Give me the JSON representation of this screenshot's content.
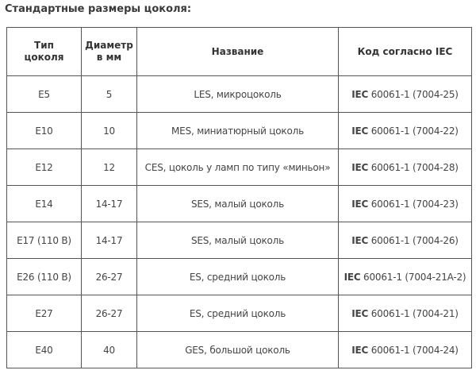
{
  "heading": "Стандартные размеры цоколя:",
  "table": {
    "headers": [
      {
        "line1": "Тип",
        "line2": "цоколя"
      },
      {
        "line1": "Диаметр",
        "line2": "в мм"
      },
      {
        "line1": "Название",
        "line2": ""
      },
      {
        "line1": "Код согласно IEC",
        "line2": ""
      }
    ],
    "rows": [
      {
        "type": "E5",
        "diameter": "5",
        "name": "LES, микроцоколь",
        "code_prefix": "IEC",
        "code_rest": " 60061-1 (7004-25)"
      },
      {
        "type": "E10",
        "diameter": "10",
        "name": "MES, миниатюрный цоколь",
        "code_prefix": "IEC",
        "code_rest": " 60061-1 (7004-22)"
      },
      {
        "type": "E12",
        "diameter": "12",
        "name": "CES, цоколь у ламп по типу «миньон»",
        "code_prefix": "IEC",
        "code_rest": " 60061-1 (7004-28)"
      },
      {
        "type": "E14",
        "diameter": "14-17",
        "name": "SES, малый цоколь",
        "code_prefix": "IEC",
        "code_rest": " 60061-1 (7004-23)"
      },
      {
        "type": "E17 (110 В)",
        "diameter": "14-17",
        "name": "SES, малый цоколь",
        "code_prefix": "IEC",
        "code_rest": " 60061-1 (7004-26)"
      },
      {
        "type": "E26 (110 В)",
        "diameter": "26-27",
        "name": "ES, средний цоколь",
        "code_prefix": "IEC",
        "code_rest": " 60061-1 (7004-21A-2)"
      },
      {
        "type": "E27",
        "diameter": "26-27",
        "name": "ES, средний цоколь",
        "code_prefix": "IEC",
        "code_rest": " 60061-1 (7004-21)"
      },
      {
        "type": "E40",
        "diameter": "40",
        "name": "GES, большой цоколь",
        "code_prefix": "IEC",
        "code_rest": " 60061-1 (7004-24)"
      }
    ]
  }
}
